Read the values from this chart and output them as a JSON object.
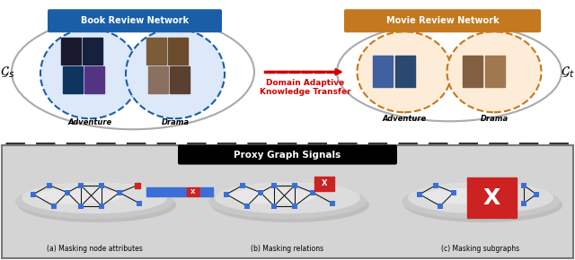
{
  "book_box_color": "#1a5ea8",
  "movie_box_color": "#c47820",
  "book_title": "Book Review Network",
  "movie_title": "Movie Review Network",
  "transfer_label": "Domain Adaptive\nKnowledge Transfer",
  "proxy_title": "Proxy Graph Signals",
  "sub_labels": [
    "(a) Masking node attributes",
    "(b) Masking relations",
    "(c) Masking subgraphs"
  ],
  "gs_label": "$\\mathcal{G}_s$",
  "gt_label": "$\\mathcal{G}_t$",
  "adventure_label": "Adventure",
  "drama_label": "Drama",
  "node_color": "#3a6fd8",
  "edge_color": "#111111",
  "arrow_color": "#cc0000",
  "sep_color": "#333333"
}
